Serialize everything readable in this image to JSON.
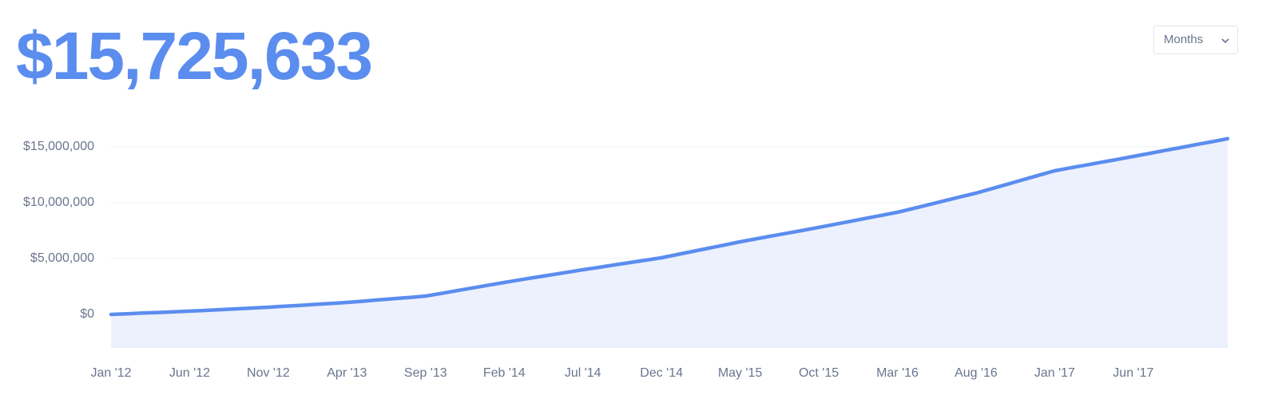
{
  "header": {
    "total": "$15,725,633"
  },
  "controls": {
    "period": "Months"
  },
  "chart_data": {
    "type": "area",
    "categories": [
      "Jan '12",
      null,
      null,
      null,
      null,
      "Jun '12",
      null,
      null,
      null,
      null,
      "Nov '12",
      null,
      null,
      null,
      null,
      "Apr '13",
      null,
      null,
      null,
      null,
      "Sep '13",
      null,
      null,
      null,
      null,
      "Feb '14",
      null,
      null,
      null,
      null,
      "Jul '14",
      null,
      null,
      null,
      null,
      "Dec '14",
      null,
      null,
      null,
      null,
      "May '15",
      null,
      null,
      null,
      null,
      "Oct '15",
      null,
      null,
      null,
      null,
      "Mar '16",
      null,
      null,
      null,
      null,
      "Aug '16",
      null,
      null,
      null,
      null,
      "Jan '17",
      null,
      null,
      null,
      null,
      "Jun '17",
      null,
      null,
      null,
      null,
      null,
      null
    ],
    "values": [
      0,
      60000,
      120000,
      175000,
      230000,
      290000,
      360000,
      430000,
      500000,
      570000,
      640000,
      730000,
      810000,
      900000,
      980000,
      1070000,
      1180000,
      1300000,
      1410000,
      1520000,
      1640000,
      1880000,
      2130000,
      2370000,
      2620000,
      2860000,
      3090000,
      3320000,
      3540000,
      3770000,
      4000000,
      4210000,
      4430000,
      4640000,
      4860000,
      5070000,
      5360000,
      5640000,
      5930000,
      6210000,
      6500000,
      6760000,
      7020000,
      7270000,
      7530000,
      7790000,
      8060000,
      8330000,
      8600000,
      8870000,
      9140000,
      9480000,
      9830000,
      10170000,
      10520000,
      10860000,
      11260000,
      11660000,
      12060000,
      12460000,
      12860000,
      13120000,
      13370000,
      13630000,
      13880000,
      14140000,
      14400000,
      14670000,
      14930000,
      15200000,
      15460000,
      15725633
    ],
    "color": "#5b8def",
    "fill_color": "#edf1fd",
    "ylim": [
      -3000000,
      16000000
    ],
    "yticks": [
      {
        "value": 0,
        "label": "$0"
      },
      {
        "value": 5000000,
        "label": "$5,000,000"
      },
      {
        "value": 10000000,
        "label": "$10,000,000"
      },
      {
        "value": 15000000,
        "label": "$15,000,000"
      }
    ],
    "grid": true
  }
}
